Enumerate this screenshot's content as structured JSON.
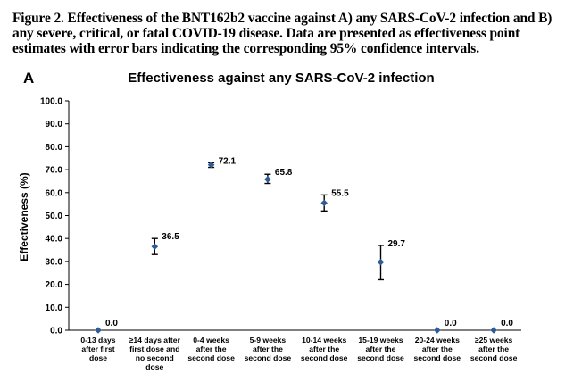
{
  "caption": "Figure 2. Effectiveness of the BNT162b2 vaccine against A) any SARS-CoV-2 infection and B) any severe, critical, or fatal COVID-19 disease. Data are presented as effectiveness point estimates with error bars indicating the corresponding 95% confidence intervals.",
  "panel_letter": "A",
  "colors": {
    "marker": "#2e5c96",
    "error_bar": "#000000",
    "axis": "#000000"
  },
  "chart_data": {
    "type": "scatter",
    "title": "Effectiveness against any SARS-CoV-2 infection",
    "xlabel": "",
    "ylabel": "Effectiveness (%)",
    "ylim": [
      0,
      100
    ],
    "yticks": [
      "0.0",
      "10.0",
      "20.0",
      "30.0",
      "40.0",
      "50.0",
      "60.0",
      "70.0",
      "80.0",
      "90.0",
      "100.0"
    ],
    "grid": false,
    "legend": "none",
    "categories": [
      [
        "0-13 days",
        "after first",
        "dose"
      ],
      [
        "≥14 days after",
        "first dose and",
        "no second",
        "dose"
      ],
      [
        "0-4 weeks",
        "after the",
        "second dose"
      ],
      [
        "5-9 weeks",
        "after the",
        "second dose"
      ],
      [
        "10-14 weeks",
        "after the",
        "second dose"
      ],
      [
        "15-19 weeks",
        "after the",
        "second dose"
      ],
      [
        "20-24 weeks",
        "after the",
        "second dose"
      ],
      [
        "≥25 weeks",
        "after the",
        "second dose"
      ]
    ],
    "values": [
      0.0,
      36.5,
      72.1,
      65.8,
      55.5,
      29.7,
      0.0,
      0.0
    ],
    "labels": [
      "0.0",
      "36.5",
      "72.1",
      "65.8",
      "55.5",
      "29.7",
      "0.0",
      "0.0"
    ],
    "ci_lower": [
      null,
      33.0,
      71.0,
      64.0,
      52.0,
      22.0,
      null,
      null
    ],
    "ci_upper": [
      null,
      40.0,
      73.0,
      68.0,
      59.0,
      37.0,
      null,
      null
    ]
  }
}
